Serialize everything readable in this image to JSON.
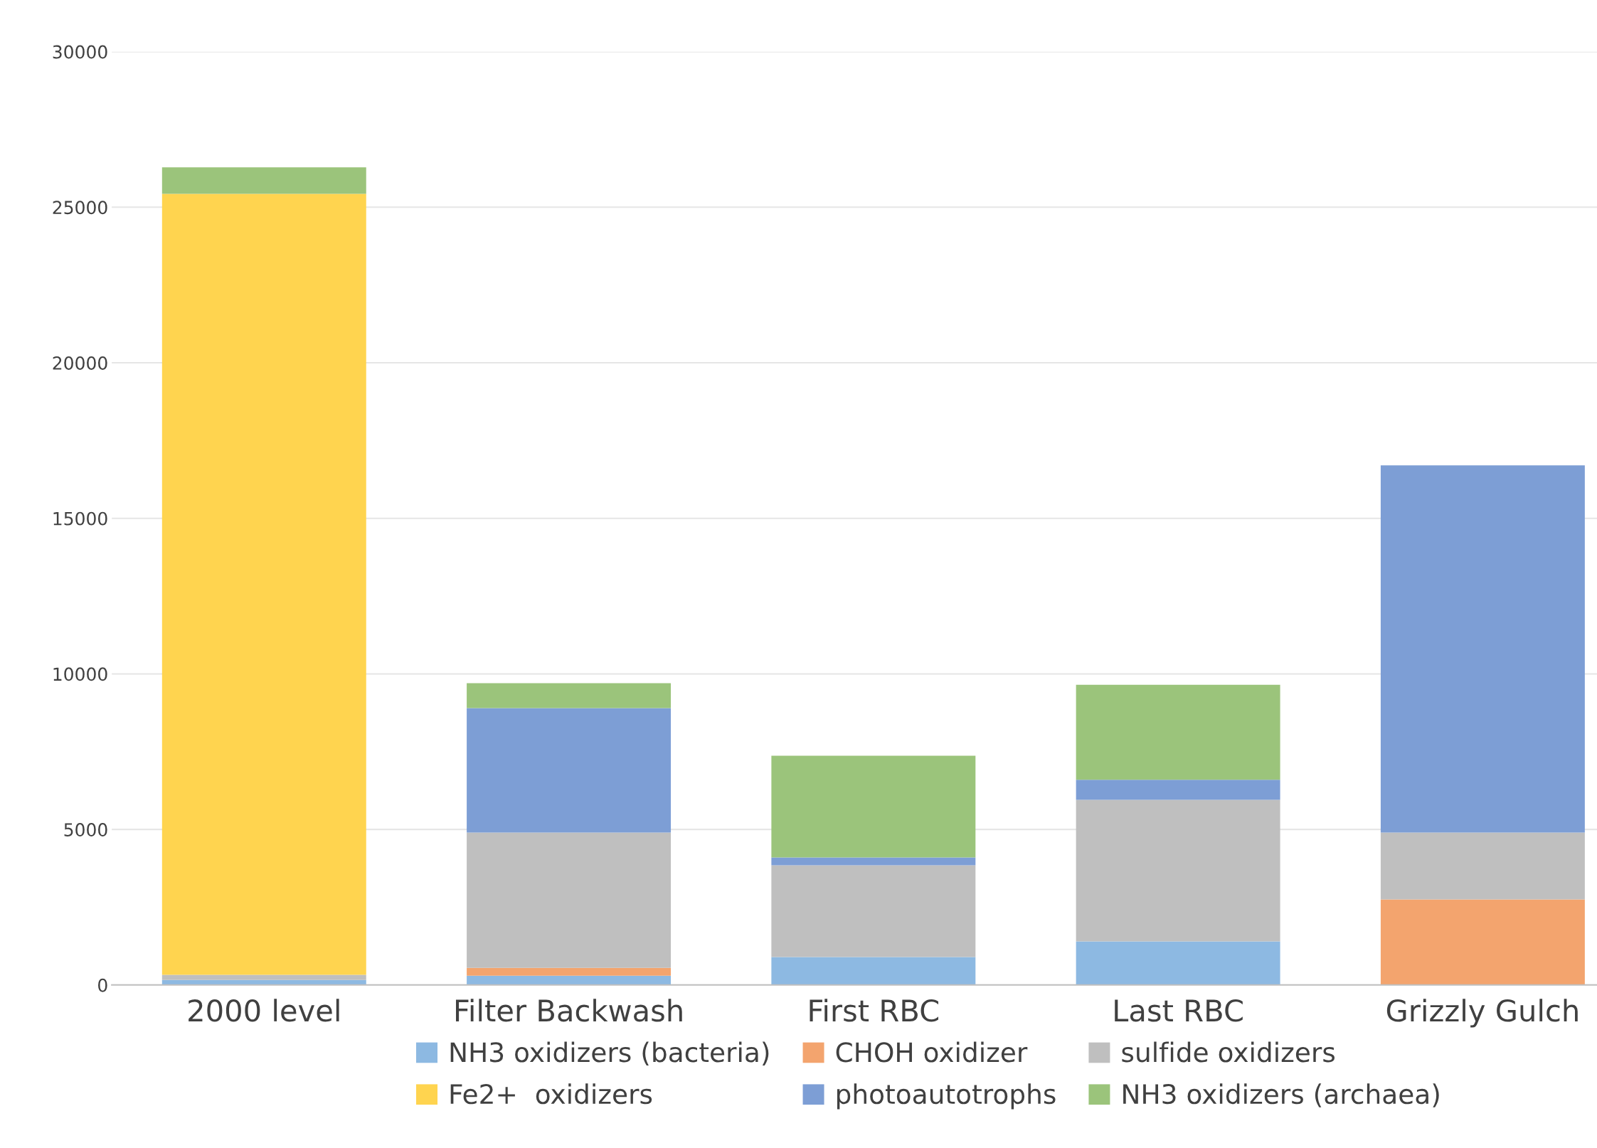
{
  "chart_data": {
    "type": "bar",
    "stacked": true,
    "categories": [
      "2000 level",
      "Filter Backwash",
      "First RBC",
      "Last RBC",
      "Grizzly Gulch"
    ],
    "series": [
      {
        "name": "NH3 oxidizers (bacteria)",
        "color": "#8db9e2",
        "values": [
          160,
          300,
          900,
          1400,
          0
        ]
      },
      {
        "name": "CHOH oxidizer",
        "color": "#f3a46e",
        "values": [
          0,
          250,
          0,
          0,
          2750
        ]
      },
      {
        "name": "sulfide oxidizers",
        "color": "#bfbfbf",
        "values": [
          170,
          4350,
          2950,
          4550,
          2150
        ]
      },
      {
        "name": "Fe2+  oxidizers",
        "color": "#ffd44f",
        "values": [
          25100,
          0,
          0,
          0,
          0
        ]
      },
      {
        "name": "photoautotrophs",
        "color": "#7d9ed5",
        "values": [
          0,
          4000,
          250,
          650,
          11800
        ]
      },
      {
        "name": "NH3 oxidizers (archaea)",
        "color": "#9bc47b",
        "values": [
          850,
          800,
          3270,
          3050,
          0
        ]
      }
    ],
    "ylim": [
      0,
      30000
    ],
    "yticks": [
      0,
      5000,
      10000,
      15000,
      20000,
      25000,
      30000
    ],
    "grid": "y",
    "legend": "bottom"
  }
}
